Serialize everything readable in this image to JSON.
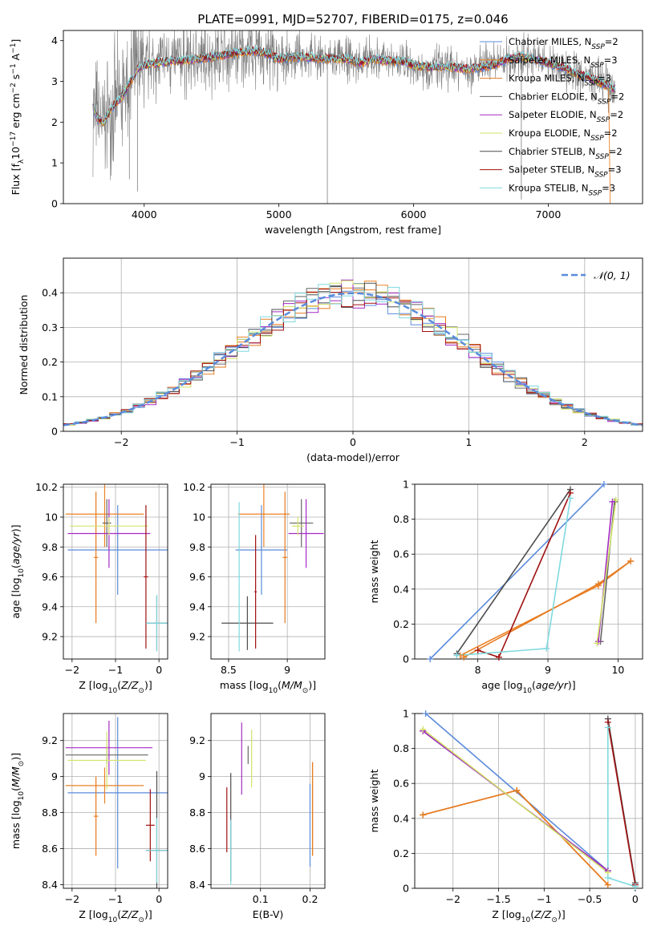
{
  "figure_title": "PLATE=0991, MJD=52707, FIBERID=0175, z=0.046",
  "colors": {
    "Chabrier MILES": "#5b8bdc",
    "Salpeter MILES": "#eb8227",
    "Kroupa MILES": "#e57a1e",
    "Chabrier ELODIE": "#666666",
    "Salpeter ELODIE": "#a42bc4",
    "Kroupa ELODIE": "#d3e36a",
    "Chabrier STELIB": "#4d4d4d",
    "Salpeter STELIB": "#a01010",
    "Kroupa STELIB": "#7fd9e0",
    "data": "#7f7f7f",
    "gaussian": "#5b8bdc",
    "grid": "#b0b0b0"
  },
  "chart_data": [
    {
      "id": "spectrum",
      "type": "line",
      "title": "PLATE=0991, MJD=52707, FIBERID=0175, z=0.046",
      "xlabel": "wavelength [Angstrom, rest frame]",
      "ylabel": "Flux [f_λ 10^-17 erg cm^-2 s^-1 A^-1]",
      "xlim": [
        3400,
        7700
      ],
      "ylim": [
        0,
        4.25
      ],
      "xticks": [
        4000,
        5000,
        6000,
        7000
      ],
      "yticks": [
        0,
        1,
        2,
        3,
        4
      ],
      "grid": false,
      "legend_position": "top-right",
      "legend": [
        {
          "base": "Chabrier MILES, N",
          "sub": "SSP",
          "tail": "=2"
        },
        {
          "base": "Salpeter MILES, N",
          "sub": "SSP",
          "tail": "=3"
        },
        {
          "base": "Kroupa MILES, N",
          "sub": "SSP",
          "tail": "=3"
        },
        {
          "base": "Chabrier ELODIE, N",
          "sub": "SSP",
          "tail": "=2"
        },
        {
          "base": "Salpeter ELODIE, N",
          "sub": "SSP",
          "tail": "=2"
        },
        {
          "base": "Kroupa ELODIE, N",
          "sub": "SSP",
          "tail": "=2"
        },
        {
          "base": "Chabrier STELIB, N",
          "sub": "SSP",
          "tail": "=2"
        },
        {
          "base": "Salpeter STELIB, N",
          "sub": "SSP",
          "tail": "=3"
        },
        {
          "base": "Kroupa STELIB, N",
          "sub": "SSP",
          "tail": "=3"
        }
      ],
      "model_curve": {
        "x": [
          3620,
          3650,
          3700,
          3750,
          3800,
          3850,
          3900,
          3950,
          4000,
          4100,
          4200,
          4300,
          4400,
          4500,
          4600,
          4700,
          4800,
          4900,
          5000,
          5100,
          5200,
          5300,
          5400,
          5500,
          5600,
          5700,
          5800,
          5900,
          6000,
          6100,
          6200,
          6300,
          6400,
          6500,
          6600,
          6700,
          6800,
          6900,
          7000,
          7100,
          7200,
          7300,
          7400,
          7500
        ],
        "y": [
          2.4,
          2.1,
          2.0,
          2.3,
          2.5,
          2.7,
          3.0,
          3.3,
          3.4,
          3.45,
          3.5,
          3.5,
          3.55,
          3.6,
          3.65,
          3.7,
          3.75,
          3.7,
          3.55,
          3.6,
          3.6,
          3.55,
          3.55,
          3.55,
          3.45,
          3.55,
          3.5,
          3.5,
          3.4,
          3.35,
          3.35,
          3.35,
          3.3,
          3.35,
          3.4,
          3.55,
          3.6,
          3.55,
          3.45,
          3.35,
          3.2,
          3.1,
          2.95,
          2.8
        ]
      }
    },
    {
      "id": "residuals",
      "type": "line",
      "xlabel": "(data-model)/error",
      "ylabel": "Normed distribution",
      "xlim": [
        -2.5,
        2.5
      ],
      "ylim": [
        0,
        0.5
      ],
      "xticks": [
        -2,
        -1,
        0,
        1,
        2
      ],
      "yticks": [
        0.0,
        0.1,
        0.2,
        0.3,
        0.4
      ],
      "grid": true,
      "legend_position": "top-right",
      "legend": [
        "𝒩(0, 1)"
      ],
      "series": [
        {
          "name": "𝒩(0, 1)",
          "kind": "gaussian",
          "mu": 0,
          "sigma": 1
        }
      ],
      "histogram": {
        "bin_start": -2.5,
        "bin_width": 0.1,
        "bins": 50
      }
    },
    {
      "id": "age_vs_Z",
      "type": "scatter",
      "xlabel": "Z [log10(Z/Z⊙)]",
      "ylabel": "age  [log10(age/yr)]",
      "xlim": [
        -2.2,
        0.2
      ],
      "ylim": [
        9.05,
        10.22
      ],
      "xticks": [
        -2,
        -1,
        0
      ],
      "yticks": [
        9.2,
        9.4,
        9.6,
        9.8,
        10.0,
        10.2
      ],
      "grid": true,
      "crosses": [
        {
          "model": "Chabrier MILES",
          "x": -0.95,
          "xerr": 1.15,
          "y": 9.78,
          "yerr": 0.3
        },
        {
          "model": "Salpeter MILES",
          "x": -1.25,
          "xerr": 0.9,
          "y": 10.02,
          "yerr": 0.22
        },
        {
          "model": "Kroupa MILES",
          "x": -1.45,
          "xerr": 0.05,
          "y": 9.73,
          "yerr": 0.44
        },
        {
          "model": "Chabrier ELODIE",
          "x": -1.2,
          "xerr": 0.1,
          "y": 9.96,
          "yerr": 0.16
        },
        {
          "model": "Salpeter ELODIE",
          "x": -1.15,
          "xerr": 0.95,
          "y": 9.89,
          "yerr": 0.23
        },
        {
          "model": "Kroupa ELODIE",
          "x": -1.15,
          "xerr": 0.9,
          "y": 9.94,
          "yerr": 0.06
        },
        {
          "model": "Chabrier STELIB",
          "x": -0.05,
          "xerr": 0.25,
          "y": 9.29,
          "yerr": 0.18
        },
        {
          "model": "Salpeter STELIB",
          "x": -0.3,
          "xerr": 0.05,
          "y": 9.6,
          "yerr": 0.48
        },
        {
          "model": "Kroupa STELIB",
          "x": -0.05,
          "xerr": 0.25,
          "y": 9.29,
          "yerr": 0.19
        }
      ]
    },
    {
      "id": "age_vs_mass",
      "type": "scatter",
      "xlabel": "mass [log10(M/M⊙)]",
      "ylabel": "",
      "xlim": [
        8.35,
        9.32
      ],
      "ylim": [
        9.05,
        10.22
      ],
      "xticks": [
        8.5,
        9.0
      ],
      "yticks": [
        9.2,
        9.4,
        9.6,
        9.8,
        10.0,
        10.2
      ],
      "grid": true,
      "crosses": [
        {
          "model": "Chabrier MILES",
          "x": 8.78,
          "xerr": 0.22,
          "y": 9.78,
          "yerr": 0.3
        },
        {
          "model": "Salpeter MILES",
          "x": 8.8,
          "xerr": 0.22,
          "y": 10.02,
          "yerr": 0.22
        },
        {
          "model": "Kroupa MILES",
          "x": 8.98,
          "xerr": 0.02,
          "y": 9.73,
          "yerr": 0.44
        },
        {
          "model": "Chabrier ELODIE",
          "x": 9.12,
          "xerr": 0.1,
          "y": 9.96,
          "yerr": 0.16
        },
        {
          "model": "Salpeter ELODIE",
          "x": 9.16,
          "xerr": 0.15,
          "y": 9.89,
          "yerr": 0.23
        },
        {
          "model": "Kroupa ELODIE",
          "x": 9.09,
          "xerr": 0.05,
          "y": 9.94,
          "yerr": 0.06
        },
        {
          "model": "Chabrier STELIB",
          "x": 8.66,
          "xerr": 0.22,
          "y": 9.29,
          "yerr": 0.18
        },
        {
          "model": "Salpeter STELIB",
          "x": 8.73,
          "xerr": 0.01,
          "y": 9.5,
          "yerr": 0.38
        },
        {
          "model": "Kroupa STELIB",
          "x": 8.59,
          "xerr": 0.01,
          "y": 9.6,
          "yerr": 0.5
        }
      ]
    },
    {
      "id": "weight_vs_age",
      "type": "line",
      "xlabel": "age  [log10(age/yr)]",
      "ylabel": "mass weight",
      "xlim": [
        7.1,
        10.35
      ],
      "ylim": [
        0,
        1.0
      ],
      "xticks": [
        8,
        9,
        10
      ],
      "yticks": [
        0.0,
        0.2,
        0.4,
        0.6,
        0.8,
        1.0
      ],
      "grid": true,
      "series": [
        {
          "model": "Chabrier MILES",
          "x": [
            7.32,
            9.8
          ],
          "y": [
            0.0,
            1.0
          ]
        },
        {
          "model": "Salpeter MILES",
          "x": [
            7.75,
            9.72,
            10.18
          ],
          "y": [
            0.02,
            0.42,
            0.56
          ]
        },
        {
          "model": "Kroupa MILES",
          "x": [
            7.8,
            9.72,
            10.18
          ],
          "y": [
            0.01,
            0.43,
            0.56
          ]
        },
        {
          "model": "Chabrier ELODIE",
          "x": [
            9.75,
            9.95
          ],
          "y": [
            0.1,
            0.9
          ]
        },
        {
          "model": "Salpeter ELODIE",
          "x": [
            9.72,
            9.92
          ],
          "y": [
            0.1,
            0.9
          ]
        },
        {
          "model": "Kroupa ELODIE",
          "x": [
            9.7,
            9.97
          ],
          "y": [
            0.09,
            0.91
          ]
        },
        {
          "model": "Chabrier STELIB",
          "x": [
            7.7,
            9.32
          ],
          "y": [
            0.03,
            0.97
          ]
        },
        {
          "model": "Salpeter STELIB",
          "x": [
            8.0,
            8.3,
            9.32
          ],
          "y": [
            0.05,
            0.01,
            0.95
          ]
        },
        {
          "model": "Kroupa STELIB",
          "x": [
            7.7,
            8.98,
            9.32
          ],
          "y": [
            0.02,
            0.06,
            0.92
          ]
        }
      ]
    },
    {
      "id": "mass_vs_Z",
      "type": "scatter",
      "xlabel": "Z [log10(Z/Z⊙)]",
      "ylabel": "mass [log10(M/M⊙)]",
      "xlim": [
        -2.2,
        0.2
      ],
      "ylim": [
        8.38,
        9.35
      ],
      "xticks": [
        -2,
        -1,
        0
      ],
      "yticks": [
        8.4,
        8.6,
        8.8,
        9.0,
        9.2
      ],
      "grid": true,
      "crosses": [
        {
          "model": "Chabrier MILES",
          "x": -0.95,
          "xerr": 1.15,
          "y": 8.91,
          "yerr": 0.42
        },
        {
          "model": "Salpeter MILES",
          "x": -1.25,
          "xerr": 0.9,
          "y": 8.95,
          "yerr": 0.1
        },
        {
          "model": "Kroupa MILES",
          "x": -1.45,
          "xerr": 0.05,
          "y": 8.78,
          "yerr": 0.22
        },
        {
          "model": "Chabrier ELODIE",
          "x": -1.2,
          "xerr": 0.95,
          "y": 9.12,
          "yerr": 0.05
        },
        {
          "model": "Salpeter ELODIE",
          "x": -1.15,
          "xerr": 1.0,
          "y": 9.16,
          "yerr": 0.15
        },
        {
          "model": "Kroupa ELODIE",
          "x": -1.2,
          "xerr": 0.9,
          "y": 9.09,
          "yerr": 0.16
        },
        {
          "model": "Chabrier STELIB",
          "x": -0.05,
          "xerr": 0.25,
          "y": 8.59,
          "yerr": 0.44
        },
        {
          "model": "Salpeter STELIB",
          "x": -0.2,
          "xerr": 0.1,
          "y": 8.73,
          "yerr": 0.2
        },
        {
          "model": "Kroupa STELIB",
          "x": -0.05,
          "xerr": 0.25,
          "y": 8.59,
          "yerr": 0.18
        }
      ]
    },
    {
      "id": "mass_vs_ebv",
      "type": "scatter",
      "xlabel": "E(B-V)",
      "ylabel": "",
      "xlim": [
        0.0,
        0.23
      ],
      "ylim": [
        8.38,
        9.35
      ],
      "xticks": [
        0.1,
        0.2
      ],
      "yticks": [
        8.4,
        8.6,
        8.8,
        9.0,
        9.2
      ],
      "grid": true,
      "crosses": [
        {
          "model": "Chabrier MILES",
          "x": 0.2,
          "xerr": 0,
          "y": 8.73,
          "yerr": 0.23
        },
        {
          "model": "Salpeter MILES",
          "x": 0.205,
          "xerr": 0,
          "y": 8.82,
          "yerr": 0.26
        },
        {
          "model": "Kroupa MILES",
          "x": 0.205,
          "xerr": 0,
          "y": 8.82,
          "yerr": 0.26
        },
        {
          "model": "Chabrier ELODIE",
          "x": 0.075,
          "xerr": 0,
          "y": 9.12,
          "yerr": 0.05
        },
        {
          "model": "Salpeter ELODIE",
          "x": 0.062,
          "xerr": 0,
          "y": 9.1,
          "yerr": 0.2
        },
        {
          "model": "Kroupa ELODIE",
          "x": 0.082,
          "xerr": 0,
          "y": 9.1,
          "yerr": 0.16
        },
        {
          "model": "Chabrier STELIB",
          "x": 0.04,
          "xerr": 0,
          "y": 8.72,
          "yerr": 0.3
        },
        {
          "model": "Salpeter STELIB",
          "x": 0.032,
          "xerr": 0,
          "y": 8.76,
          "yerr": 0.18
        },
        {
          "model": "Kroupa STELIB",
          "x": 0.04,
          "xerr": 0,
          "y": 8.58,
          "yerr": 0.18
        }
      ]
    },
    {
      "id": "weight_vs_Z",
      "type": "line",
      "xlabel": "Z [log10(Z/Z⊙)]",
      "ylabel": "mass weight",
      "xlim": [
        -2.42,
        0.08
      ],
      "ylim": [
        0,
        1.0
      ],
      "xticks": [
        -2.0,
        -1.5,
        -1.0,
        -0.5,
        0.0
      ],
      "yticks": [
        0.0,
        0.2,
        0.4,
        0.6,
        0.8,
        1.0
      ],
      "grid": true,
      "series": [
        {
          "model": "Chabrier MILES",
          "x": [
            -2.3,
            -0.3
          ],
          "y": [
            1.0,
            0.1
          ]
        },
        {
          "model": "Salpeter MILES",
          "x": [
            -2.33,
            -1.3,
            -0.3
          ],
          "y": [
            0.42,
            0.56,
            0.02
          ]
        },
        {
          "model": "Kroupa MILES",
          "x": [
            -2.33,
            -1.3,
            -0.3
          ],
          "y": [
            0.42,
            0.56,
            0.02
          ]
        },
        {
          "model": "Chabrier ELODIE",
          "x": [
            -2.33,
            -0.3
          ],
          "y": [
            0.9,
            0.1
          ]
        },
        {
          "model": "Salpeter ELODIE",
          "x": [
            -2.33,
            -0.3
          ],
          "y": [
            0.9,
            0.1
          ]
        },
        {
          "model": "Kroupa ELODIE",
          "x": [
            -2.33,
            -0.3
          ],
          "y": [
            0.91,
            0.09
          ]
        },
        {
          "model": "Chabrier STELIB",
          "x": [
            -0.3,
            0.0
          ],
          "y": [
            0.97,
            0.03
          ]
        },
        {
          "model": "Salpeter STELIB",
          "x": [
            -0.3,
            0.0
          ],
          "y": [
            0.95,
            0.02
          ]
        },
        {
          "model": "Kroupa STELIB",
          "x": [
            -0.3,
            -0.3,
            0.0
          ],
          "y": [
            0.92,
            0.06,
            0.01
          ]
        }
      ]
    }
  ]
}
